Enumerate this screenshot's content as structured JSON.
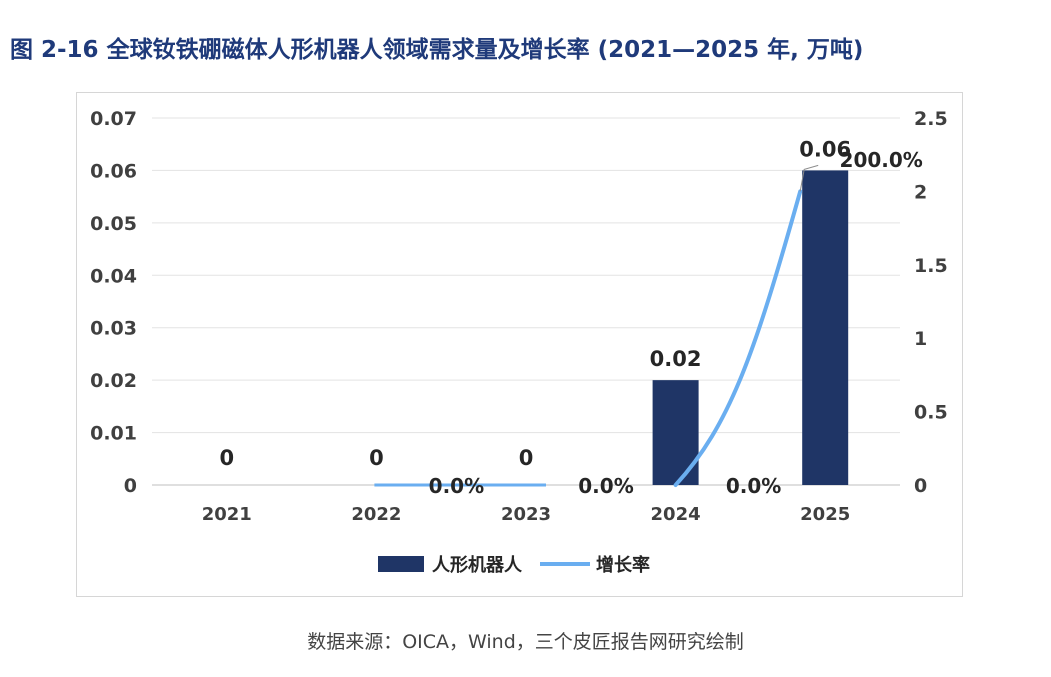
{
  "title": "图 2-16 全球钕铁硼磁体人形机器人领域需求量及增长率 (2021—2025 年, 万吨)",
  "source": "数据来源：OICA，Wind，三个皮匠报告网研究绘制",
  "chart_data": {
    "type": "bar",
    "categories": [
      "2021",
      "2022",
      "2023",
      "2024",
      "2025"
    ],
    "series": [
      {
        "name": "人形机器人",
        "kind": "bar",
        "axis": "left",
        "color": "#1f3566",
        "values": [
          0,
          0,
          0,
          0.02,
          0.06
        ],
        "labels": [
          "0",
          "0",
          "0",
          "0.02",
          "0.06"
        ]
      },
      {
        "name": "增长率",
        "kind": "line",
        "axis": "right",
        "color": "#6aaef0",
        "values": [
          null,
          0,
          0,
          0,
          2
        ],
        "labels": [
          "",
          "0.0%",
          "0.0%",
          "0.0%",
          "200.0%"
        ]
      }
    ],
    "y_left": {
      "min": 0,
      "max": 0.07,
      "ticks": [
        "0",
        "0.01",
        "0.02",
        "0.03",
        "0.04",
        "0.05",
        "0.06",
        "0.07"
      ]
    },
    "y_right": {
      "min": 0,
      "max": 2.5,
      "ticks": [
        "0",
        "0.5",
        "1",
        "1.5",
        "2",
        "2.5"
      ]
    },
    "grid": true,
    "legend_position": "bottom"
  }
}
